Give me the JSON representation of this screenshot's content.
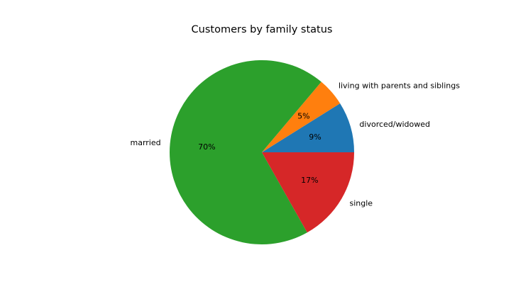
{
  "chart_data": {
    "type": "pie",
    "title": "Customers by family status",
    "slices": [
      {
        "label": "divorced/widowed",
        "value": 9,
        "pct_label": "9%",
        "color": "#1f77b4"
      },
      {
        "label": "living with parents and siblings",
        "value": 5,
        "pct_label": "5%",
        "color": "#ff7f0e"
      },
      {
        "label": "married",
        "value": 70,
        "pct_label": "70%",
        "color": "#2ca02c"
      },
      {
        "label": "single",
        "value": 17,
        "pct_label": "17%",
        "color": "#d62728"
      }
    ],
    "start_angle_deg": 0,
    "direction": "counterclockwise",
    "legend": "none"
  }
}
